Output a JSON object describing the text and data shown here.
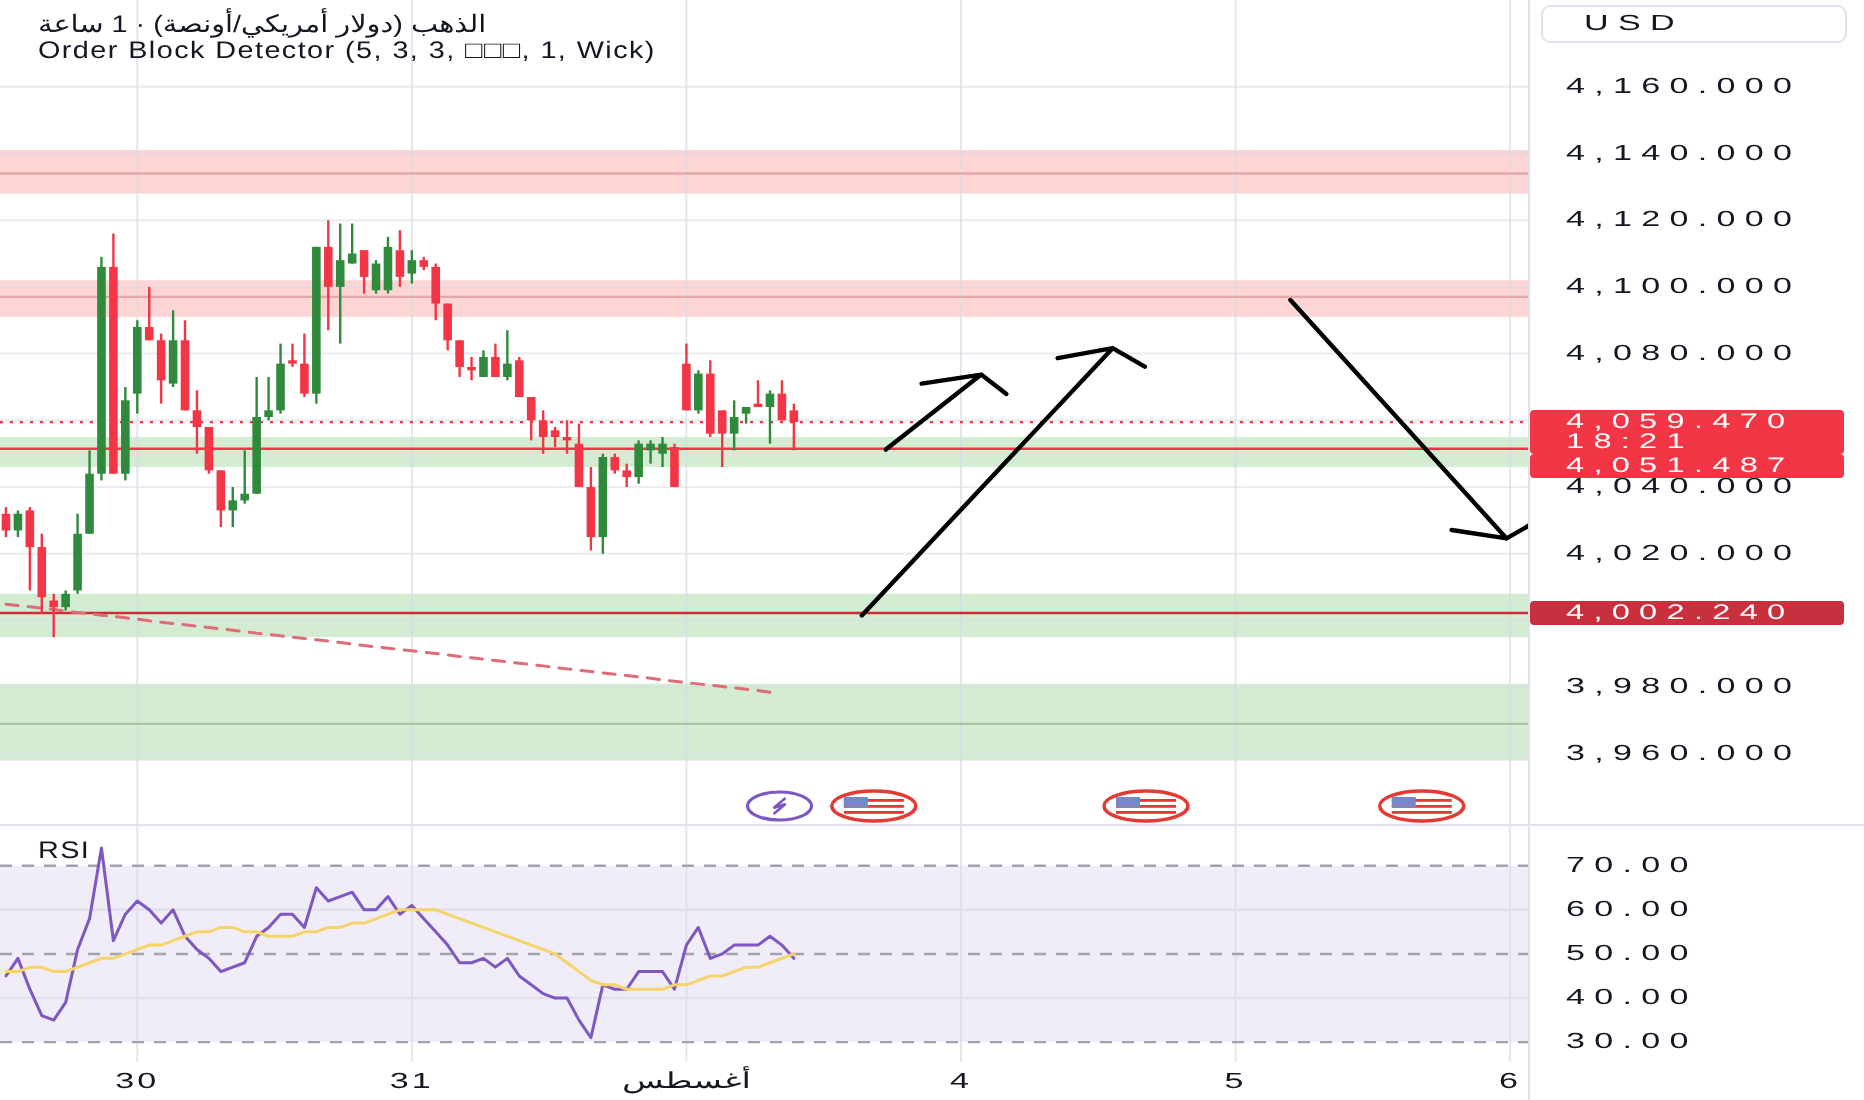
{
  "chart_data": [
    {
      "type": "candlestick",
      "title": "الذهب (دولار أمريكي/أونصة) · 1 ساعة",
      "subtitle": "Order Block Detector (5, 3, 3, □□□, 1, Wick)",
      "ylabel": "USD",
      "categories": [
        null,
        null,
        null,
        null,
        null,
        null,
        null,
        null,
        null,
        null,
        null,
        null,
        null,
        null,
        null,
        null,
        null,
        null,
        null,
        null,
        null,
        null,
        null,
        null,
        null,
        null,
        null,
        null,
        null,
        null,
        null,
        null,
        null,
        null,
        null,
        null,
        null,
        null,
        null,
        null,
        null,
        null,
        null,
        null,
        null,
        null,
        null,
        null,
        null,
        null,
        null,
        null,
        null,
        null,
        null,
        null,
        null,
        null,
        null,
        null,
        null,
        null,
        null,
        null,
        null,
        null,
        null,
        null,
        null,
        null,
        null,
        null,
        null,
        null,
        null,
        null,
        null,
        null,
        null,
        null,
        null,
        null,
        null,
        null,
        null,
        null,
        null,
        null,
        null,
        null,
        null,
        null,
        null,
        null,
        null,
        null,
        null,
        null,
        null,
        null,
        null,
        null,
        null,
        null,
        null,
        null,
        null,
        null,
        null,
        null,
        null,
        null,
        null,
        null,
        null,
        null,
        null,
        null,
        null,
        null,
        null,
        null,
        null,
        null,
        null,
        null,
        null,
        null
      ],
      "ohlc": [
        [
          4032,
          4034,
          4025,
          4027
        ],
        [
          4027,
          4033,
          4025,
          4032
        ],
        [
          4033,
          4034,
          4009,
          4022
        ],
        [
          4022,
          4026,
          4002,
          4007
        ],
        [
          4006,
          4008,
          3995,
          4004
        ],
        [
          4004,
          4009,
          4003,
          4008
        ],
        [
          4009,
          4032,
          4008,
          4026
        ],
        [
          4026,
          4051,
          4026,
          4044
        ],
        [
          4044,
          4109,
          4042,
          4106
        ],
        [
          4106,
          4116,
          4044,
          4044
        ],
        [
          4044,
          4070,
          4042,
          4066
        ],
        [
          4068,
          4090,
          4062,
          4088
        ],
        [
          4088,
          4100,
          4084,
          4084
        ],
        [
          4084,
          4086,
          4065,
          4072
        ],
        [
          4071,
          4093,
          4070,
          4084
        ],
        [
          4084,
          4090,
          4063,
          4063
        ],
        [
          4063,
          4069,
          4050,
          4058
        ],
        [
          4058,
          4058,
          4044,
          4045
        ],
        [
          4045,
          4045,
          4028,
          4033
        ],
        [
          4033,
          4040,
          4028,
          4036
        ],
        [
          4036,
          4051,
          4035,
          4038
        ],
        [
          4038,
          4073,
          4038,
          4061
        ],
        [
          4061,
          4073,
          4060,
          4063
        ],
        [
          4063,
          4083,
          4062,
          4077
        ],
        [
          4078,
          4083,
          4076,
          4077
        ],
        [
          4077,
          4086,
          4067,
          4068
        ],
        [
          4068,
          4112,
          4065,
          4112
        ],
        [
          4112,
          4120,
          4087,
          4100
        ],
        [
          4100,
          4119,
          4083,
          4108
        ],
        [
          4107,
          4119,
          4107,
          4110
        ],
        [
          4111,
          4111,
          4098,
          4103
        ],
        [
          4099,
          4108,
          4098,
          4107
        ],
        [
          4099,
          4115,
          4098,
          4112
        ],
        [
          4111,
          4117,
          4100,
          4103
        ],
        [
          4104,
          4111,
          4101,
          4108
        ],
        [
          4108,
          4109,
          4105,
          4106
        ],
        [
          4106,
          4107,
          4090,
          4095
        ],
        [
          4095,
          4095,
          4081,
          4084
        ],
        [
          4084,
          4084,
          4073,
          4076
        ],
        [
          4076,
          4079,
          4072,
          4075
        ],
        [
          4073,
          4081,
          4073,
          4079
        ],
        [
          4079,
          4083,
          4073,
          4073
        ],
        [
          4073,
          4087,
          4072,
          4077
        ],
        [
          4078,
          4079,
          4067,
          4067
        ],
        [
          4067,
          4067,
          4054,
          4060
        ],
        [
          4060,
          4063,
          4050,
          4055
        ],
        [
          4057,
          4058,
          4052,
          4055
        ],
        [
          4055,
          4060,
          4050,
          4054
        ],
        [
          4053,
          4059,
          4040,
          4040
        ],
        [
          4040,
          4046,
          4021,
          4025
        ],
        [
          4025,
          4050,
          4020,
          4049
        ],
        [
          4049,
          4050,
          4044,
          4045
        ],
        [
          4045,
          4047,
          4040,
          4043
        ],
        [
          4043,
          4054,
          4041,
          4053
        ],
        [
          4051,
          4054,
          4047,
          4053
        ],
        [
          4050,
          4055,
          4046,
          4053
        ],
        [
          4052,
          4053,
          4040,
          4040
        ],
        [
          4077,
          4083,
          4063,
          4063
        ],
        [
          4063,
          4075,
          4062,
          4074
        ],
        [
          4074,
          4078,
          4055,
          4056
        ],
        [
          4063,
          4063,
          4046,
          4056
        ],
        [
          4056,
          4066,
          4051,
          4061
        ],
        [
          4062,
          4064,
          4059,
          4064
        ],
        [
          4065,
          4072,
          4064,
          4064
        ],
        [
          4064,
          4069,
          4053,
          4068
        ],
        [
          4068,
          4072,
          4060,
          4060
        ],
        [
          4063,
          4065,
          4051,
          4059.47
        ],
        null,
        null,
        null,
        null,
        null,
        null,
        null,
        null,
        null,
        null,
        null,
        null,
        null,
        null,
        null,
        null,
        null,
        null,
        null,
        null,
        null,
        null,
        null,
        null,
        null,
        null,
        null,
        null,
        null,
        null,
        null,
        null,
        null,
        null,
        null,
        null,
        null,
        null,
        null,
        null,
        null,
        null,
        null,
        null,
        null,
        null,
        null,
        null,
        null,
        null,
        null,
        null,
        null,
        null,
        null,
        null,
        null,
        null,
        null,
        null,
        null
      ],
      "colors": [
        "#f23645",
        "#308a3c",
        "#f23645",
        "#f23645",
        "#f23645",
        "#308a3c",
        "#308a3c",
        "#308a3c",
        "#308a3c",
        "#f23645",
        "#308a3c",
        "#308a3c",
        "#f23645",
        "#f23645",
        "#308a3c",
        "#f23645",
        "#f23645",
        "#f23645",
        "#f23645",
        "#308a3c",
        "#308a3c",
        "#308a3c",
        "#308a3c",
        "#308a3c",
        "#f23645",
        "#f23645",
        "#308a3c",
        "#f23645",
        "#308a3c",
        "#308a3c",
        "#f23645",
        "#308a3c",
        "#308a3c",
        "#f23645",
        "#308a3c",
        "#f23645",
        "#f23645",
        "#f23645",
        "#f23645",
        "#f23645",
        "#308a3c",
        "#f23645",
        "#308a3c",
        "#f23645",
        "#f23645",
        "#f23645",
        "#f23645",
        "#f23645",
        "#f23645",
        "#f23645",
        "#308a3c",
        "#f23645",
        "#f23645",
        "#308a3c",
        "#308a3c",
        "#308a3c",
        "#f23645",
        "#f23645",
        "#308a3c",
        "#f23645",
        "#f23645",
        "#308a3c",
        "#308a3c",
        "#f23645",
        "#308a3c",
        "#f23645",
        "#f23645",
        null,
        null,
        null,
        null,
        null,
        null,
        null,
        null,
        null,
        null,
        null,
        null,
        null,
        null,
        null,
        null,
        null,
        null,
        null,
        null,
        null,
        null,
        null,
        null,
        null,
        null,
        null,
        null,
        null,
        null,
        null,
        null,
        null,
        null,
        null,
        null,
        null,
        null,
        null,
        null,
        null,
        null,
        null,
        null,
        null,
        null,
        null,
        null,
        null,
        null,
        null,
        null,
        null,
        null,
        null,
        null,
        null,
        null,
        null,
        null,
        null
      ],
      "series": [
        {
          "type": "line",
          "color": "#e06c78",
          "line_style": "dashed",
          "values": [
            4004.9,
            4004.5,
            4004.1,
            4003.7,
            4003.3,
            4002.8,
            4002.4,
            4002.0,
            4001.6,
            4001.2,
            4000.8,
            4000.4,
            3999.9,
            3999.5,
            3999.1,
            3998.7,
            3998.3,
            3997.9,
            3997.5,
            3997.1,
            3996.7,
            3996.2,
            3995.8,
            3995.4,
            3995.0,
            3994.6,
            3994.2,
            3993.8,
            3993.4,
            3992.9,
            3992.5,
            3992.1,
            3991.7,
            3991.3,
            3990.9,
            3990.5,
            3990.1,
            3989.7,
            3989.2,
            3988.8,
            3988.4,
            3988.0,
            3987.6,
            3987.2,
            3986.8,
            3986.4,
            3985.9,
            3985.5,
            3985.1,
            3984.7,
            3984.3,
            3983.9,
            3983.5,
            3983.1,
            3982.7,
            3982.2,
            3981.8,
            3981.4,
            3981.0,
            3980.6,
            3980.2,
            3979.8,
            3979.4,
            3979.0,
            3978.5,
            null,
            null,
            null,
            null,
            null,
            null,
            null,
            null,
            null,
            null,
            null,
            null,
            null,
            null,
            null,
            null,
            null,
            null,
            null,
            null,
            null,
            null,
            null,
            null,
            null,
            null,
            null,
            null,
            null,
            null,
            null,
            null,
            null,
            null,
            null,
            null,
            null,
            null,
            null,
            null,
            null,
            null,
            null,
            null,
            null,
            null,
            null,
            null,
            null,
            null,
            null,
            null,
            null,
            null,
            null,
            null,
            null,
            null,
            null,
            null,
            null,
            null,
            null
          ]
        }
      ],
      "ylim": [
        3939,
        4186
      ],
      "yticks": [
        {
          "value": 3960,
          "label": "3,960.000"
        },
        {
          "value": 3980,
          "label": "3,980.000"
        },
        {
          "value": 4000,
          "label": null
        },
        {
          "value": 4020,
          "label": "4,020.000"
        },
        {
          "value": 4040,
          "label": "4,040.000"
        },
        {
          "value": 4060,
          "label": null
        },
        {
          "value": 4080,
          "label": "4,080.000"
        },
        {
          "value": 4100,
          "label": "4,100.000"
        },
        {
          "value": 4120,
          "label": "4,120.000"
        },
        {
          "value": 4140,
          "label": "4,140.000"
        },
        {
          "value": 4160,
          "label": "4,160.000"
        }
      ],
      "bands": [
        {
          "axis": "y",
          "from": 4128,
          "to": 4141,
          "color": "#fdd5d5"
        },
        {
          "axis": "y",
          "from": 4091,
          "to": 4102,
          "color": "#fdd5d5"
        },
        {
          "axis": "y",
          "from": 4046,
          "to": 4055,
          "color": "#d4ecd2"
        },
        {
          "axis": "y",
          "from": 3995,
          "to": 4008,
          "color": "#d4ecd2"
        },
        {
          "axis": "y",
          "from": 3958,
          "to": 3981,
          "color": "#d4ecd2"
        }
      ],
      "ref_lines": [
        {
          "axis": "y",
          "value": 4059.47,
          "label": "4,059.470\n18:21",
          "color": "#f23645",
          "line_style": "dotted"
        },
        {
          "axis": "y",
          "value": 4051.487,
          "label": "4,051.487",
          "color": "#f23645"
        },
        {
          "axis": "y",
          "value": 4002.24,
          "label": "4,002.240",
          "color": "#c9303e"
        },
        {
          "axis": "y",
          "value": 4134,
          "color": "#e3a9a9"
        },
        {
          "axis": "y",
          "value": 4097,
          "color": "#e3a9a9"
        },
        {
          "axis": "y",
          "value": 3969,
          "color": "#a8c4a5"
        }
      ],
      "tick_labels": "y",
      "grid": true
    },
    {
      "type": "line",
      "title": "RSI",
      "categories": [
        null,
        null,
        null,
        null,
        null,
        null,
        null,
        null,
        null,
        null,
        null,
        "30",
        null,
        null,
        null,
        null,
        null,
        null,
        null,
        null,
        null,
        null,
        null,
        null,
        null,
        null,
        null,
        null,
        null,
        null,
        null,
        null,
        null,
        null,
        "31",
        null,
        null,
        null,
        null,
        null,
        null,
        null,
        null,
        null,
        null,
        null,
        null,
        null,
        null,
        null,
        null,
        null,
        null,
        null,
        null,
        null,
        null,
        "أغسطس",
        null,
        null,
        null,
        null,
        null,
        null,
        null,
        null,
        null,
        null,
        null,
        null,
        null,
        null,
        null,
        null,
        null,
        null,
        null,
        null,
        null,
        null,
        "4",
        null,
        null,
        null,
        null,
        null,
        null,
        null,
        null,
        null,
        null,
        null,
        null,
        null,
        null,
        null,
        null,
        null,
        null,
        null,
        null,
        null,
        null,
        "5",
        null,
        null,
        null,
        null,
        null,
        null,
        null,
        null,
        null,
        null,
        null,
        null,
        null,
        null,
        null,
        null,
        null,
        null,
        null,
        null,
        null,
        null,
        "6",
        null
      ],
      "series": [
        {
          "color": "#7e57c2",
          "values": [
            45,
            49,
            42,
            36,
            35,
            39,
            51,
            58,
            74,
            53,
            59,
            62,
            60,
            57,
            60,
            54,
            51,
            49,
            46,
            47,
            48,
            54,
            56,
            59,
            59,
            56,
            65,
            62,
            63,
            64,
            60,
            60,
            63,
            59,
            61,
            58,
            55,
            52,
            48,
            48,
            49,
            47,
            49,
            45,
            43,
            41,
            40,
            40,
            35,
            31,
            43,
            42,
            42,
            46,
            46,
            46,
            42,
            52,
            56,
            49,
            50,
            52,
            52,
            52,
            54,
            52,
            49,
            null,
            null,
            null,
            null,
            null,
            null,
            null,
            null,
            null,
            null,
            null,
            null,
            null,
            null,
            null,
            null,
            null,
            null,
            null,
            null,
            null,
            null,
            null,
            null,
            null,
            null,
            null,
            null,
            null,
            null,
            null,
            null,
            null,
            null,
            null,
            null,
            null,
            null,
            null,
            null,
            null,
            null,
            null,
            null,
            null,
            null,
            null,
            null,
            null,
            null,
            null,
            null,
            null,
            null,
            null,
            null,
            null,
            null,
            null,
            null,
            null
          ]
        },
        {
          "color": "#f5d46a",
          "values": [
            46,
            46,
            47,
            47,
            46,
            46,
            47,
            48,
            49,
            49,
            50,
            51,
            52,
            52,
            53,
            54,
            55,
            55,
            56,
            56,
            55,
            55,
            54,
            54,
            54,
            55,
            55,
            56,
            56,
            57,
            57,
            58,
            59,
            60,
            60,
            60,
            60,
            59,
            58,
            57,
            56,
            55,
            54,
            53,
            52,
            51,
            50,
            48,
            46,
            44,
            43,
            43,
            42,
            42,
            42,
            42,
            43,
            43,
            44,
            45,
            45,
            46,
            47,
            47,
            48,
            49,
            50,
            null,
            null,
            null,
            null,
            null,
            null,
            null,
            null,
            null,
            null,
            null,
            null,
            null,
            null,
            null,
            null,
            null,
            null,
            null,
            null,
            null,
            null,
            null,
            null,
            null,
            null,
            null,
            null,
            null,
            null,
            null,
            null,
            null,
            null,
            null,
            null,
            null,
            null,
            null,
            null,
            null,
            null,
            null,
            null,
            null,
            null,
            null,
            null,
            null,
            null,
            null,
            null,
            null,
            null,
            null,
            null,
            null,
            null,
            null,
            null,
            null
          ]
        }
      ],
      "ylim": [
        25.5,
        79
      ],
      "yticks": [
        {
          "value": 30,
          "label": "30.00"
        },
        {
          "value": 40,
          "label": "40.00"
        },
        {
          "value": 50,
          "label": "50.00"
        },
        {
          "value": 60,
          "label": "60.00"
        },
        {
          "value": 70,
          "label": "70.00"
        }
      ],
      "bands": [
        {
          "axis": "y",
          "from": 30,
          "to": 70,
          "color": "#f0edf8"
        }
      ],
      "ref_lines": [
        {
          "axis": "y",
          "value": 70,
          "color": "#a3a3ab",
          "line_style": "dashed"
        },
        {
          "axis": "y",
          "value": 60,
          "color": "#e2e0ea"
        },
        {
          "axis": "y",
          "value": 50,
          "color": "#a3a3ab",
          "line_style": "dashed"
        },
        {
          "axis": "y",
          "value": 40,
          "color": "#e2e0ea"
        },
        {
          "axis": "y",
          "value": 30,
          "color": "#a3a3ab",
          "line_style": "dashed"
        }
      ],
      "grid": "x"
    }
  ]
}
